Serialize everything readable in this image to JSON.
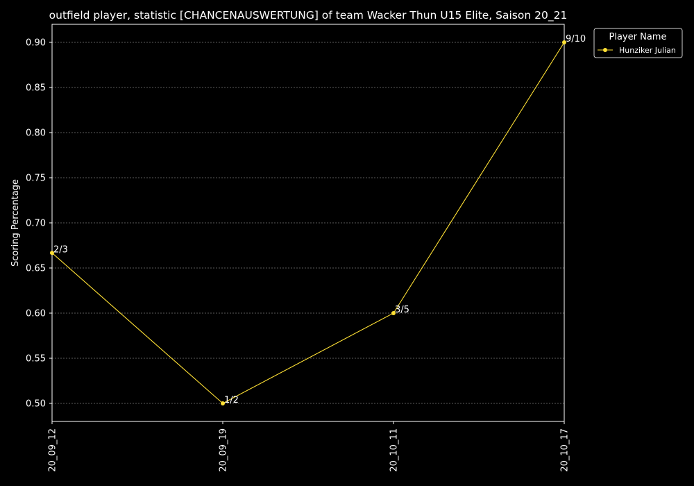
{
  "chart_data": {
    "type": "line",
    "title": "outfield player, statistic [CHANCENAUSWERTUNG] of team Wacker Thun U15 Elite, Saison 20_21",
    "xlabel": "",
    "ylabel": "Scoring Percentage",
    "categories": [
      "20_09_12",
      "20_09_19",
      "20_10_11",
      "20_10_17"
    ],
    "ylim": [
      0.48,
      0.92
    ],
    "yticks": [
      0.5,
      0.55,
      0.6,
      0.65,
      0.7,
      0.75,
      0.8,
      0.85,
      0.9
    ],
    "grid": true,
    "legend": {
      "title": "Player Name",
      "placement": "outside-top-right"
    },
    "series": [
      {
        "name": "Hunziker Julian",
        "color": "#ffe135",
        "values": [
          0.6667,
          0.5,
          0.6,
          0.9
        ],
        "labels": [
          "2/3",
          "1/2",
          "3/5",
          "9/10"
        ]
      }
    ]
  },
  "colors": {
    "background": "#000000",
    "foreground": "#ffffff",
    "grid": "#7a7a7a"
  }
}
